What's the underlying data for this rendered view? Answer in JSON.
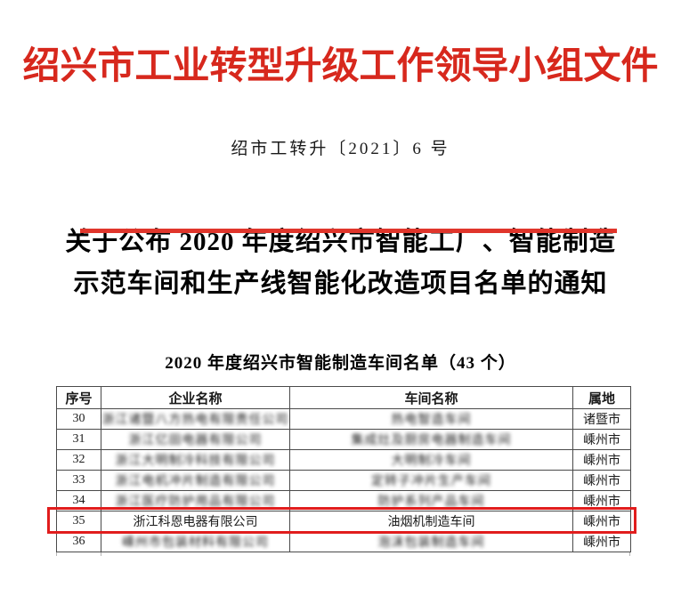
{
  "document": {
    "letterhead": "绍兴市工业转型升级工作领导小组文件",
    "doc_number": "绍市工转升〔2021〕6 号",
    "title_line1": "关于公布 2020 年度绍兴市智能工厂、智能制造",
    "title_line2": "示范车间和生产线智能化改造项目名单的通知",
    "table_title": "2020 年度绍兴市智能制造车间名单（43 个）"
  },
  "colors": {
    "letterhead_red": "#d7281d",
    "divider_red": "#e0352b",
    "highlight_red": "#e11d1d",
    "table_border": "#4a4a4a",
    "blurred_text": "#8f8f8f"
  },
  "table": {
    "headers": [
      "序号",
      "企业名称",
      "车间名称",
      "属地"
    ],
    "rows": [
      {
        "no": "30",
        "company": "浙江诸暨八方热电有限责任公司",
        "company_blurred": true,
        "workshop": "热电智造车间",
        "workshop_blurred": true,
        "location": "诸暨市",
        "highlighted": false
      },
      {
        "no": "31",
        "company": "浙江亿田电器有限公司",
        "company_blurred": true,
        "workshop": "集成灶及厨房电器制造车间",
        "workshop_blurred": true,
        "location": "嵊州市",
        "highlighted": false
      },
      {
        "no": "32",
        "company": "浙江大明制冷科技有限公司",
        "company_blurred": true,
        "workshop": "大明制冷车间",
        "workshop_blurred": true,
        "location": "嵊州市",
        "highlighted": false
      },
      {
        "no": "33",
        "company": "浙江电机冲片制造有限公司",
        "company_blurred": true,
        "workshop": "定转子冲片生产车间",
        "workshop_blurred": true,
        "location": "嵊州市",
        "highlighted": false
      },
      {
        "no": "34",
        "company": "浙江医疗防护用品有限公司",
        "company_blurred": true,
        "workshop": "防护系列产品车间",
        "workshop_blurred": true,
        "location": "嵊州市",
        "highlighted": false
      },
      {
        "no": "35",
        "company": "浙江科恩电器有限公司",
        "company_blurred": false,
        "workshop": "油烟机制造车间",
        "workshop_blurred": false,
        "location": "嵊州市",
        "highlighted": true
      },
      {
        "no": "36",
        "company": "嵊州市包装材料有限公司",
        "company_blurred": true,
        "workshop": "泡沫包装制造车间",
        "workshop_blurred": true,
        "location": "嵊州市",
        "highlighted": false
      }
    ]
  }
}
